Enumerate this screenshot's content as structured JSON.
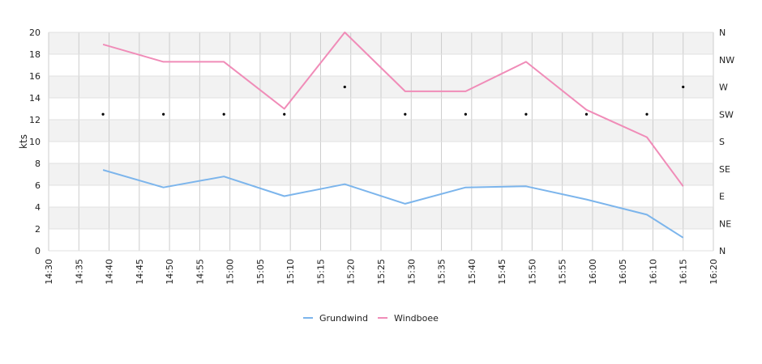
{
  "chart_data": {
    "type": "line",
    "ylabel": "kts",
    "ylim": [
      0,
      20
    ],
    "y_ticks": [
      "0",
      "2",
      "4",
      "6",
      "8",
      "10",
      "12",
      "14",
      "16",
      "18",
      "20"
    ],
    "x_ticks": [
      "14:30",
      "14:35",
      "14:40",
      "14:45",
      "14:50",
      "14:55",
      "15:00",
      "15:05",
      "15:10",
      "15:15",
      "15:20",
      "15:25",
      "15:30",
      "15:35",
      "15:40",
      "15:45",
      "15:50",
      "15:55",
      "16:00",
      "16:05",
      "16:10",
      "16:15",
      "16:20"
    ],
    "x_range": [
      "14:30",
      "16:20"
    ],
    "right_axis_labels": [
      "N",
      "NE",
      "E",
      "SE",
      "S",
      "SW",
      "W",
      "NW",
      "N"
    ],
    "grid": true,
    "legend_position": "bottom",
    "x": [
      "14:39",
      "14:49",
      "14:59",
      "15:09",
      "15:19",
      "15:29",
      "15:39",
      "15:49",
      "15:59",
      "16:09",
      "16:15"
    ],
    "series": [
      {
        "name": "Grundwind",
        "color": "#7cb5ec",
        "values": [
          7.4,
          5.8,
          6.8,
          5.0,
          6.1,
          4.3,
          5.8,
          5.9,
          4.7,
          3.3,
          1.2
        ]
      },
      {
        "name": "Windboee",
        "color": "#f08cb8",
        "values": [
          18.9,
          17.3,
          17.3,
          13.0,
          20.0,
          14.6,
          14.6,
          17.3,
          12.9,
          10.4,
          5.9
        ]
      }
    ],
    "wind_direction": {
      "color": "#000000",
      "values": [
        "SW",
        "SW",
        "SW",
        "SW",
        "W",
        "SW",
        "SW",
        "SW",
        "SW",
        "SW",
        "W"
      ]
    }
  }
}
